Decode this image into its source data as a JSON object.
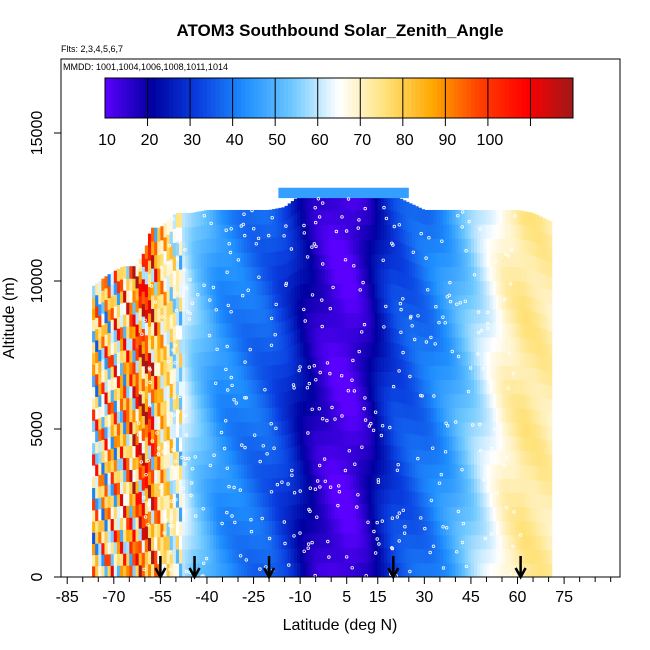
{
  "chart_data": {
    "type": "heatmap",
    "title": "ATOM3 Southbound Solar_Zenith_Angle",
    "flights_note": "Flts: 2,3,4,5,6,7",
    "dates_note": "MMDD: 1001,1004,1006,1008,1011,1014",
    "xlabel": "Latitude (deg N)",
    "ylabel": "Altitude (m)",
    "xlim": [
      -87,
      93
    ],
    "ylim": [
      0,
      17500
    ],
    "x_ticks": [
      -85,
      -70,
      -55,
      -40,
      -25,
      -10,
      5,
      15,
      30,
      45,
      60,
      75
    ],
    "y_ticks": [
      0,
      5000,
      10000,
      15000
    ],
    "colorbar": {
      "range": [
        10,
        120
      ],
      "tick_values": [
        10,
        20,
        30,
        40,
        50,
        60,
        70,
        80,
        90,
        100
      ],
      "tick_labels": [
        "10",
        "20",
        "30",
        "40",
        "50",
        "60",
        "70",
        "80",
        "90",
        "100"
      ],
      "colors": [
        "#5b00ff",
        "#0000a0",
        "#0a3fe0",
        "#1f8fff",
        "#6ec8ff",
        "#ffffff",
        "#ffe27a",
        "#ffa800",
        "#ff4000",
        "#ff0000",
        "#a01818"
      ]
    },
    "profile_latitude_points": [
      -75,
      -67,
      -60,
      -52,
      -44,
      -36,
      -28,
      -20,
      -14,
      -9,
      -4,
      1,
      5,
      8,
      12,
      16,
      20,
      26,
      32,
      38,
      44,
      50,
      56,
      62,
      68,
      72
    ],
    "profile_sza_values": [
      72,
      78,
      95,
      70,
      55,
      44,
      40,
      36,
      30,
      22,
      16,
      12,
      11,
      13,
      18,
      26,
      32,
      36,
      40,
      46,
      54,
      62,
      70,
      74,
      73,
      71
    ],
    "coverage_top_altitude_by_latitude": {
      "latitudes": [
        -77,
        -72,
        -67,
        -63,
        -60,
        -58,
        -55,
        -50,
        -45,
        -40,
        -30,
        -20,
        -15,
        -10,
        0,
        10,
        20,
        30,
        40,
        50,
        60,
        65,
        71
      ],
      "altitudes": [
        9800,
        10200,
        10500,
        10500,
        11000,
        11800,
        11800,
        12300,
        12300,
        12400,
        12400,
        12400,
        12500,
        12900,
        12900,
        12900,
        12900,
        12400,
        12400,
        12400,
        12400,
        12300,
        12000
      ]
    },
    "profile_arrow_latitudes": [
      -55,
      -44,
      -20,
      20,
      61
    ]
  }
}
